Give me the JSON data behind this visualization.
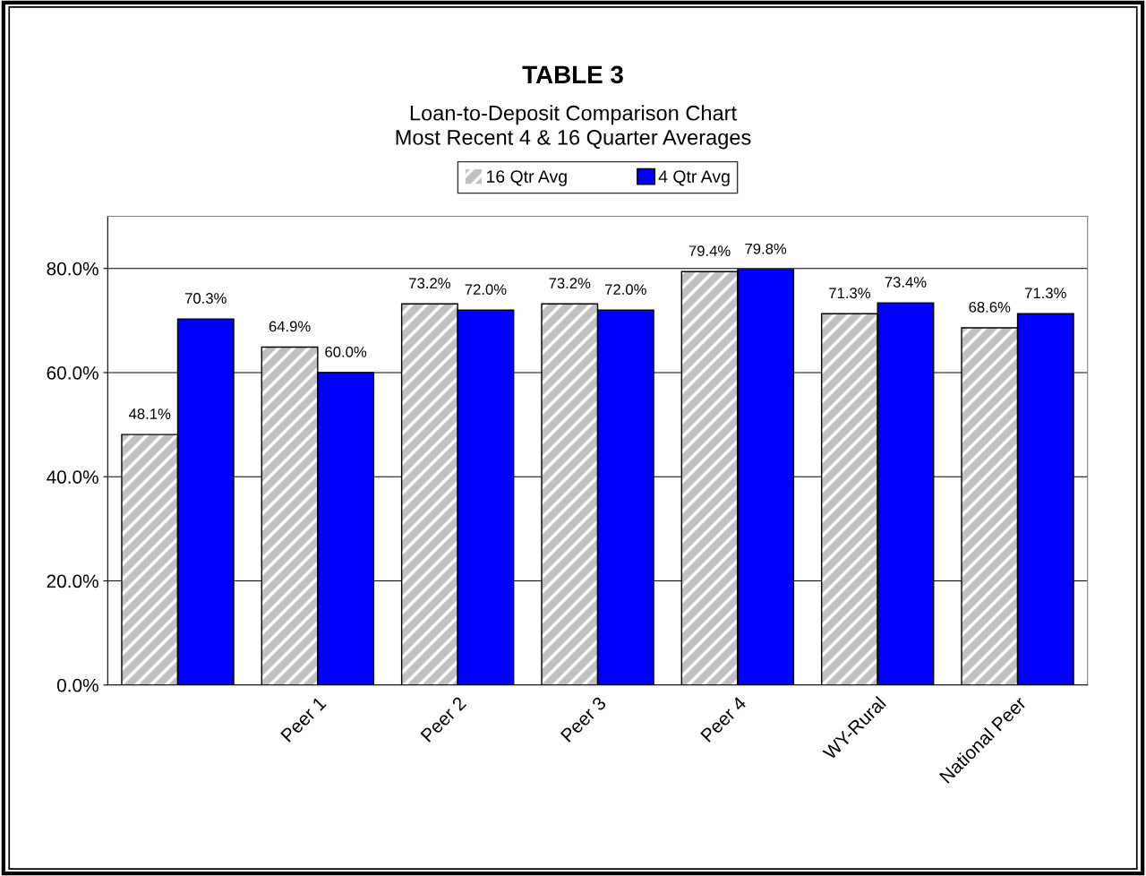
{
  "chart_data": {
    "type": "bar",
    "title": "TABLE 3",
    "subtitle": "Loan-to-Deposit Comparison Chart\nMost Recent 4 & 16 Quarter Averages",
    "categories": [
      null,
      "Peer 1",
      "Peer 2",
      "Peer 3",
      "Peer 4",
      "WY-Rural",
      "National Peer"
    ],
    "series": [
      {
        "name": "16 Qtr Avg",
        "color": "#c0c0c0",
        "values": [
          48.1,
          64.9,
          73.2,
          73.2,
          79.4,
          71.3,
          68.6
        ],
        "value_labels": [
          "48.1%",
          "64.9%",
          "73.2%",
          "73.2%",
          "79.4%",
          "71.3%",
          "68.6%"
        ]
      },
      {
        "name": "4 Qtr Avg",
        "color": "#0000ff",
        "values": [
          70.3,
          60.0,
          72.0,
          72.0,
          79.8,
          73.4,
          71.3
        ],
        "value_labels": [
          "70.3%",
          "60.0%",
          "72.0%",
          "72.0%",
          "79.8%",
          "73.4%",
          "71.3%"
        ]
      }
    ],
    "ylim": [
      0,
      90
    ],
    "yticks": [
      {
        "value": 0,
        "label": "0.0%"
      },
      {
        "value": 20,
        "label": "20.0%"
      },
      {
        "value": 40,
        "label": "40.0%"
      },
      {
        "value": 60,
        "label": "60.0%"
      },
      {
        "value": 80,
        "label": "80.0%"
      }
    ],
    "grid": "y",
    "legend": "top"
  }
}
